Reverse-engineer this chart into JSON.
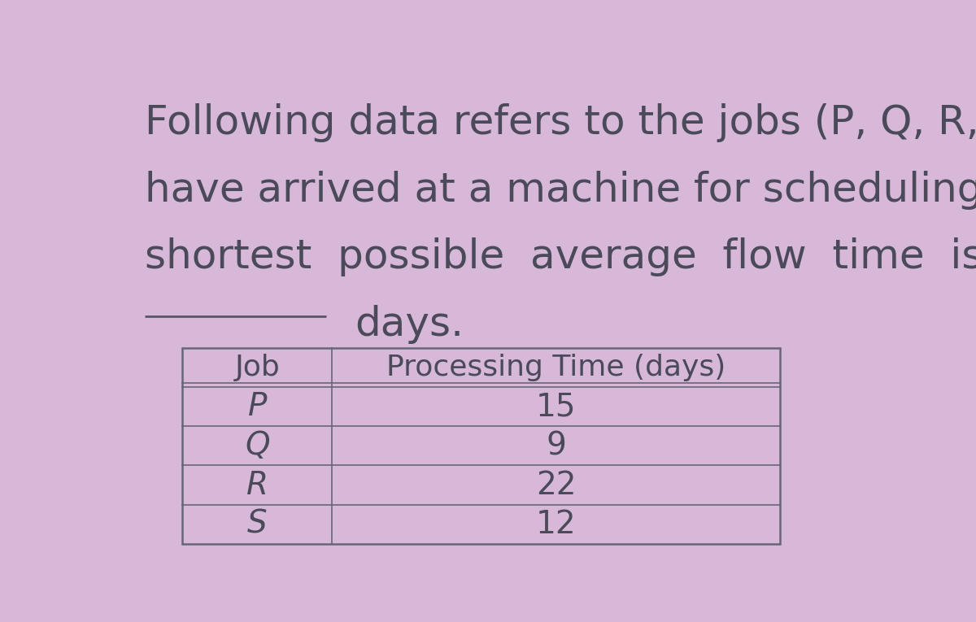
{
  "background_color": "#d8b8d8",
  "text_color": "#4a4a5a",
  "line1": "Following data refers to the jobs (P, Q, R, S) which",
  "line2": "have arrived at a machine for scheduling. The",
  "line3": "shortest  possible  average  flow  time  is",
  "line4": "days.",
  "table_headers": [
    "Job",
    "Processing Time (days)"
  ],
  "table_rows": [
    [
      "P",
      "15"
    ],
    [
      "Q",
      "9"
    ],
    [
      "R",
      "22"
    ],
    [
      "S",
      "12"
    ]
  ],
  "border_color": "#666677",
  "font_size_para": 36,
  "font_size_table_header": 26,
  "font_size_table_data": 28,
  "underline_color": "#555566"
}
